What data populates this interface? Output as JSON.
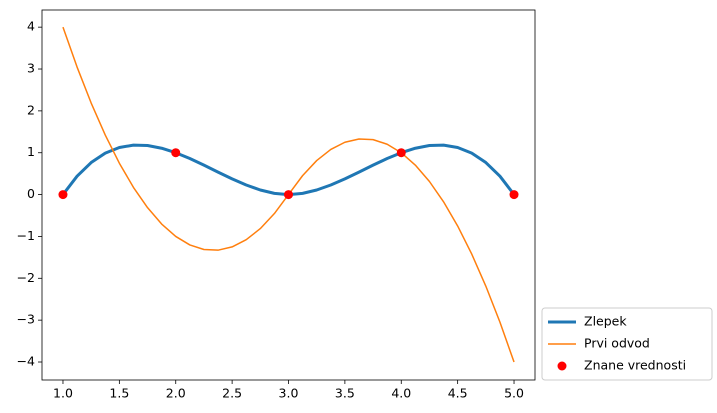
{
  "chart_data": {
    "type": "line",
    "xlim": [
      0.814,
      5.186
    ],
    "xticks": [
      {
        "value": 1,
        "label": "1.0"
      },
      {
        "value": 1.5,
        "label": "1.5"
      },
      {
        "value": 2,
        "label": "2.0"
      },
      {
        "value": 2.5,
        "label": "2.5"
      },
      {
        "value": 3,
        "label": "3.0"
      },
      {
        "value": 3.5,
        "label": "3.5"
      },
      {
        "value": 4,
        "label": "4.0"
      },
      {
        "value": 4.5,
        "label": "4.5"
      },
      {
        "value": 5,
        "label": "5.0"
      }
    ],
    "ylim": [
      -4.43,
      4.41
    ],
    "yticks": [
      {
        "value": -4,
        "label": "−4"
      },
      {
        "value": -3,
        "label": "−3"
      },
      {
        "value": -2,
        "label": "−2"
      },
      {
        "value": -1,
        "label": "−1"
      },
      0,
      1,
      2,
      3,
      4
    ],
    "legend": "outside lower right",
    "series": [
      {
        "name": "Zlepek",
        "type": "line",
        "color": "#1f77b4",
        "x": [
          1,
          1.125,
          1.25,
          1.375,
          1.5,
          1.625,
          1.75,
          1.875,
          2,
          2.125,
          2.25,
          2.375,
          2.5,
          2.625,
          2.75,
          2.875,
          3,
          3.125,
          3.25,
          3.375,
          3.5,
          3.625,
          3.75,
          3.875,
          4,
          4.125,
          4.25,
          4.375,
          4.5,
          4.625,
          4.75,
          4.875,
          5
        ],
        "values": [
          0,
          0.4395,
          0.7656,
          0.9902,
          1.125,
          1.1816,
          1.1719,
          1.1074,
          1,
          0.8613,
          0.7031,
          0.5371,
          0.375,
          0.2285,
          0.1094,
          0.0293,
          0,
          0.0293,
          0.1094,
          0.2285,
          0.375,
          0.5371,
          0.7031,
          0.8613,
          1,
          1.1074,
          1.1719,
          1.1816,
          1.125,
          0.9902,
          0.7656,
          0.4395,
          0
        ]
      },
      {
        "name": "Prvi odvod",
        "type": "line",
        "color": "#ff7f0e",
        "x": [
          1,
          1.125,
          1.25,
          1.375,
          1.5,
          1.625,
          1.75,
          1.875,
          2,
          2.125,
          2.25,
          2.375,
          2.5,
          2.625,
          2.75,
          2.875,
          3,
          3.125,
          3.25,
          3.375,
          3.5,
          3.625,
          3.75,
          3.875,
          4,
          4.125,
          4.25,
          4.375,
          4.5,
          4.625,
          4.75,
          4.875,
          5
        ],
        "values": [
          4,
          3.0469,
          2.1875,
          1.4219,
          0.75,
          0.1719,
          -0.3125,
          -0.7031,
          -1,
          -1.2031,
          -1.3125,
          -1.3281,
          -1.25,
          -1.0781,
          -0.8125,
          -0.4531,
          0,
          0.4531,
          0.8125,
          1.0781,
          1.25,
          1.3281,
          1.3125,
          1.2031,
          1,
          0.7031,
          0.3125,
          -0.1719,
          -0.75,
          -1.4219,
          -2.1875,
          -3.0469,
          -4
        ]
      },
      {
        "name": "Znane vrednosti",
        "type": "scatter",
        "color": "#ff0000",
        "x": [
          1,
          2,
          3,
          4,
          5
        ],
        "values": [
          0,
          1,
          0,
          1,
          0
        ]
      }
    ]
  }
}
